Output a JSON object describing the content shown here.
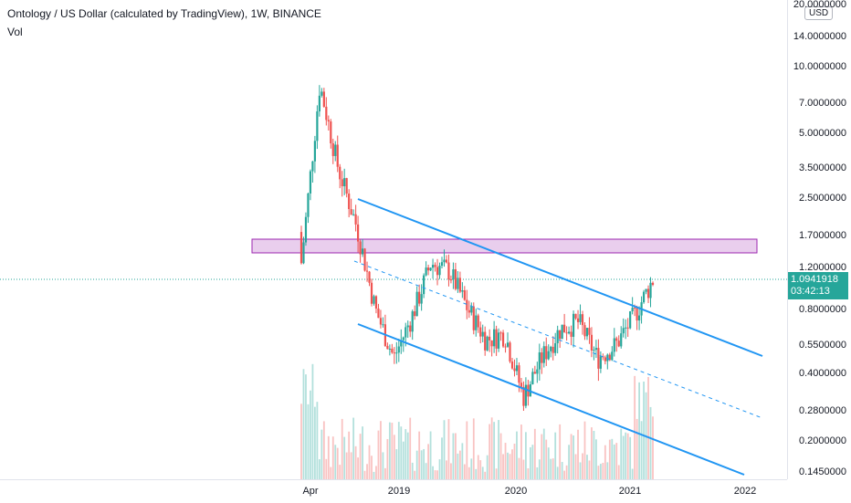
{
  "title": "Ontology / US Dollar (calculated by TradingView), 1W, BINANCE",
  "volume_label": "Vol",
  "currency": "USD",
  "last_price": "1.0941918",
  "countdown": "03:42:13",
  "colors": {
    "up": "#26a69a",
    "down": "#ef5350",
    "channel": "#2196f3",
    "zone_fill": "#e1bee7",
    "zone_border": "#9c27b0"
  },
  "price_ticks": [
    "20.0000000",
    "14.0000000",
    "10.0000000",
    "7.0000000",
    "5.0000000",
    "3.5000000",
    "2.5000000",
    "1.7000000",
    "1.2000000",
    "0.8000000",
    "0.5500000",
    "0.4000000",
    "0.2800000",
    "0.2000000",
    "0.1450000"
  ],
  "time_ticks": [
    "Apr",
    "2019",
    "2020",
    "2021",
    "2022"
  ],
  "chart_data": {
    "type": "candlestick",
    "x": [
      "Apr 2018",
      "May 2018",
      "Jul 2018",
      "Sep 2018",
      "Nov 2018",
      "Jan 2019",
      "Mar 2019",
      "May 2019",
      "Jul 2019",
      "Sep 2019",
      "Nov 2019",
      "Jan 2020",
      "Mar 2020",
      "May 2020",
      "Jul 2020",
      "Sep 2020",
      "Nov 2020",
      "Jan 2021",
      "Feb 2021",
      "Mar 2021"
    ],
    "close": [
      1.3,
      8.5,
      3.5,
      1.9,
      0.8,
      0.48,
      0.75,
      1.3,
      1.2,
      0.8,
      0.58,
      0.62,
      0.32,
      0.48,
      0.65,
      0.7,
      0.48,
      0.55,
      0.75,
      1.09
    ],
    "y_axis_scale": "log",
    "ylim": [
      0.145,
      20
    ]
  }
}
